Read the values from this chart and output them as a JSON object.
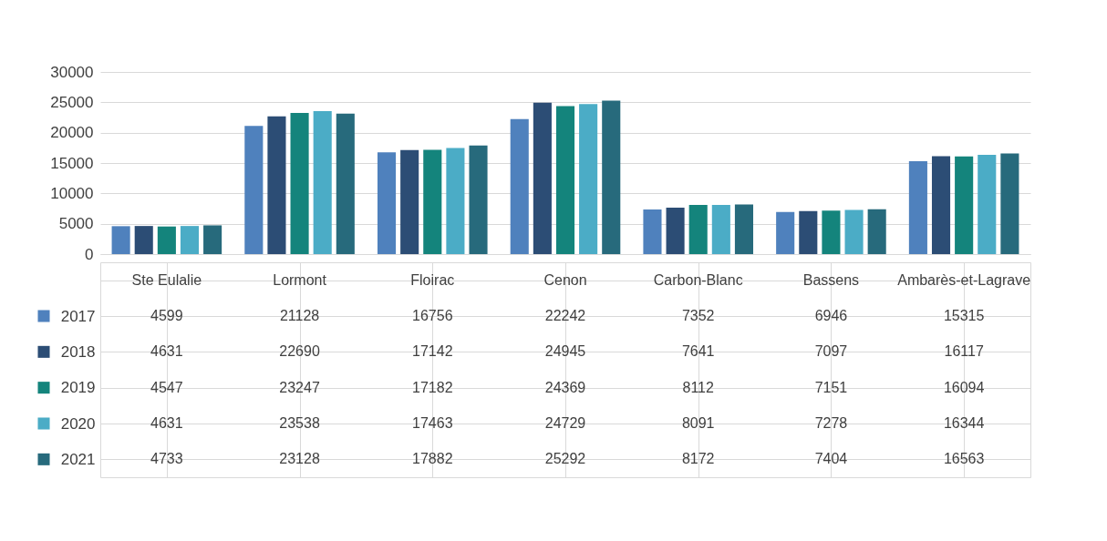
{
  "chart_data": {
    "type": "bar",
    "categories": [
      "Ste Eulalie",
      "Lormont",
      "Floirac",
      "Cenon",
      "Carbon-Blanc",
      "Bassens",
      "Ambarès-et-Lagrave"
    ],
    "series": [
      {
        "name": "2017",
        "color": "#4f81bd",
        "values": [
          4599,
          21128,
          16756,
          22242,
          7352,
          6946,
          15315
        ]
      },
      {
        "name": "2018",
        "color": "#2c4d75",
        "values": [
          4631,
          22690,
          17142,
          24945,
          7641,
          7097,
          16117
        ]
      },
      {
        "name": "2019",
        "color": "#14847c",
        "values": [
          4547,
          23247,
          17182,
          24369,
          8112,
          7151,
          16094
        ]
      },
      {
        "name": "2020",
        "color": "#4bacc6",
        "values": [
          4631,
          23538,
          17463,
          24729,
          8091,
          7278,
          16344
        ]
      },
      {
        "name": "2021",
        "color": "#276a7c",
        "values": [
          4733,
          23128,
          17882,
          25292,
          8172,
          7404,
          16563
        ]
      }
    ],
    "ylim": [
      0,
      30000
    ],
    "yticks": [
      0,
      5000,
      10000,
      15000,
      20000,
      25000,
      30000
    ],
    "grid": "y",
    "data_labels": true,
    "legend": "bottom left"
  }
}
